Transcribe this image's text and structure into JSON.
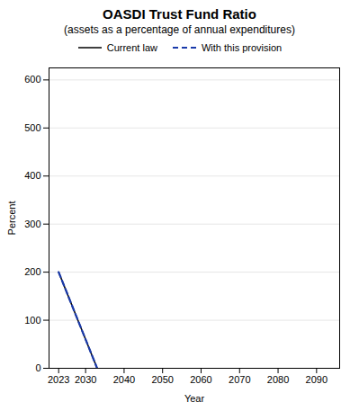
{
  "chart_data": {
    "type": "line",
    "title": "OASDI Trust Fund Ratio",
    "subtitle": "(assets as a percentage of annual expenditures)",
    "xlabel": "Year",
    "ylabel": "Percent",
    "x": [
      2023,
      2033
    ],
    "series": [
      {
        "name": "Current law",
        "color": "#000000",
        "line_style": "solid",
        "values": [
          200,
          0
        ]
      },
      {
        "name": "With this provision",
        "color": "#1a3aaa",
        "line_style": "dashed",
        "values": [
          200,
          0
        ]
      }
    ],
    "xlim": [
      2020.5,
      2096
    ],
    "ylim": [
      0,
      625
    ],
    "xticks": [
      2023,
      2030,
      2040,
      2050,
      2060,
      2070,
      2080,
      2090
    ],
    "yticks": [
      0,
      100,
      200,
      300,
      400,
      500,
      600
    ],
    "grid": "y",
    "legend": "top"
  }
}
